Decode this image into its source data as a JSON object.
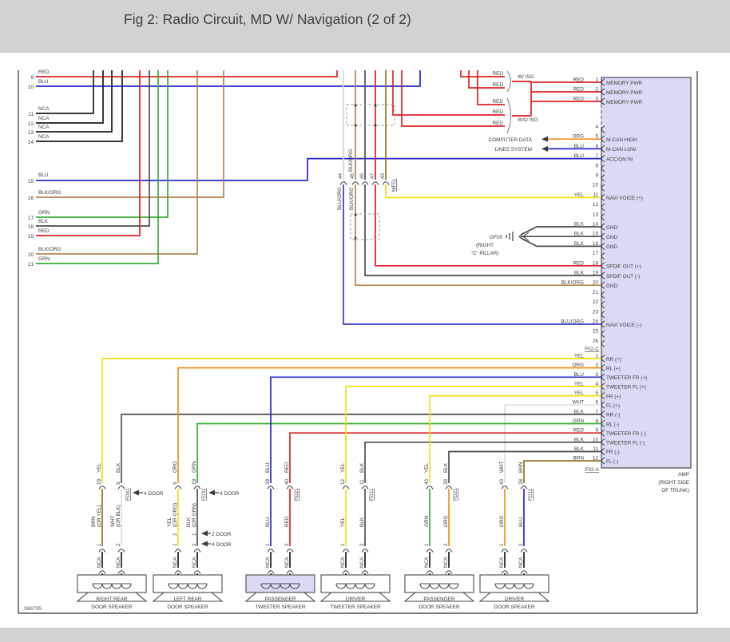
{
  "title": "Fig 2: Radio Circuit, MD W/ Navigation (2 of 2)",
  "sheet_number": "388705",
  "colors": {
    "red": "#de2126",
    "blue": "#2828cf",
    "yellow": "#f2df12",
    "orange": "#ef941e",
    "green": "#38ad38",
    "black_wire": "#4d4d4d",
    "nca_wire": "#1b1b1b",
    "blk_org": "#b3854e",
    "blu_org": "#3d38c9",
    "brown": "#8e7519",
    "white_wire": "#e0e0e0",
    "connector_fill": "#dadaf4",
    "header_band": "#d2d2d2"
  },
  "left_pins": [
    {
      "n": "9",
      "wire": "RED"
    },
    {
      "n": "10",
      "wire": "BLU"
    },
    {
      "n": "11",
      "wire": "NCA"
    },
    {
      "n": "12",
      "wire": "NCA"
    },
    {
      "n": "13",
      "wire": "NCA"
    },
    {
      "n": "14",
      "wire": "NCA"
    },
    {
      "n": "15",
      "wire": "BLU"
    },
    {
      "n": "16",
      "wire": "BLK/ORG"
    },
    {
      "n": "17",
      "wire": "GRN"
    },
    {
      "n": "18",
      "wire": "BLK"
    },
    {
      "n": "19",
      "wire": "RED"
    },
    {
      "n": "20",
      "wire": "BLK/ORG"
    },
    {
      "n": "21",
      "wire": "GRN"
    }
  ],
  "isg": {
    "wires": [
      "RED",
      "RED",
      "RED",
      "RED",
      "RED"
    ],
    "with_label": "W/ ISG",
    "without_label": "W/O ISG"
  },
  "computer_data": [
    "COMPUTER DATA",
    "LINES SYSTEM"
  ],
  "gf05": {
    "id": "GF05",
    "loc": [
      "(RIGHT",
      "\"C\" PILLAR)"
    ]
  },
  "mf51": {
    "id": "MF51",
    "pins": [
      "44",
      "45",
      "46",
      "47",
      "43"
    ],
    "label_above": "BLK/ORG",
    "labels_below": [
      "BLU/ORG",
      "BLK/ORG"
    ]
  },
  "amp": {
    "caption": [
      "AMP",
      "(RIGHT SIDE",
      "OF TRUNK)"
    ],
    "conn_c": "F02-C",
    "conn_a": "F02-A",
    "sec1_top": [
      {
        "n": "1",
        "wire": "RED",
        "label": "MEMORY PWR"
      },
      {
        "n": "2",
        "wire": "RED",
        "label": "MEMORY PWR"
      },
      {
        "n": "3",
        "wire": "RED",
        "label": "MEMORY PWR"
      }
    ],
    "sec1": [
      {
        "n": "4",
        "wire": "",
        "label": ""
      },
      {
        "n": "5",
        "wire": "ORG",
        "label": "M-CAN HIGH"
      },
      {
        "n": "6",
        "wire": "BLU",
        "label": "M-CAN LOW"
      },
      {
        "n": "7",
        "wire": "BLU",
        "label": "ACC/ON IN"
      },
      {
        "n": "8",
        "wire": "",
        "label": ""
      },
      {
        "n": "9",
        "wire": "",
        "label": ""
      },
      {
        "n": "10",
        "wire": "",
        "label": ""
      },
      {
        "n": "11",
        "wire": "YEL",
        "label": "NAVI VOICE (+)"
      },
      {
        "n": "12",
        "wire": "",
        "label": ""
      },
      {
        "n": "13",
        "wire": "",
        "label": ""
      },
      {
        "n": "14",
        "wire": "BLK",
        "label": "GND"
      },
      {
        "n": "15",
        "wire": "BLK",
        "label": "GND"
      },
      {
        "n": "16",
        "wire": "BLK",
        "label": "GND"
      },
      {
        "n": "17",
        "wire": "",
        "label": ""
      },
      {
        "n": "18",
        "wire": "RED",
        "label": "SPDIF OUT (+)"
      },
      {
        "n": "19",
        "wire": "BLK",
        "label": "SPDIF OUT (-)"
      },
      {
        "n": "20",
        "wire": "BLK/ORG",
        "label": "GND"
      },
      {
        "n": "21",
        "wire": "",
        "label": ""
      },
      {
        "n": "22",
        "wire": "",
        "label": ""
      },
      {
        "n": "23",
        "wire": "",
        "label": ""
      },
      {
        "n": "24",
        "wire": "BLU/ORG",
        "label": "NAVI VOICE (-)"
      },
      {
        "n": "25",
        "wire": "",
        "label": ""
      },
      {
        "n": "26",
        "wire": "",
        "label": ""
      }
    ],
    "sec2": [
      {
        "n": "1",
        "wire": "YEL",
        "label": "RR (+)"
      },
      {
        "n": "2",
        "wire": "ORG",
        "label": "RL (+)"
      },
      {
        "n": "3",
        "wire": "BLU",
        "label": "TWEETER FR (+)"
      },
      {
        "n": "4",
        "wire": "YEL",
        "label": "TWEETER FL (+)"
      },
      {
        "n": "5",
        "wire": "YEL",
        "label": "FR (+)"
      },
      {
        "n": "6",
        "wire": "WHT",
        "label": "FL (+)"
      },
      {
        "n": "7",
        "wire": "BLK",
        "label": "RR (-)"
      },
      {
        "n": "8",
        "wire": "GRN",
        "label": "RL (-)"
      },
      {
        "n": "9",
        "wire": "RED",
        "label": "TWEETER FR (-)"
      },
      {
        "n": "10",
        "wire": "BLK",
        "label": "TWEETER FL (-)"
      },
      {
        "n": "11",
        "wire": "BLK",
        "label": "FR (-)"
      },
      {
        "n": "12",
        "wire": "BRN",
        "label": "FL (-)"
      }
    ]
  },
  "speakers": [
    {
      "top_labels": [
        "YEL",
        "BLK"
      ],
      "top_pins": [
        "19",
        "9"
      ],
      "conn": "FD41",
      "conn_note": "4 DOOR",
      "mid_l": [
        "BRN",
        "(OR YEL)"
      ],
      "mid_r": [
        "WHT",
        "(OR BLK)"
      ],
      "bottom_pins": [
        "1",
        "2"
      ],
      "nca": [
        "NCA",
        "NCA"
      ],
      "name": [
        "RIGHT REAR",
        "DOOR SPEAKER"
      ]
    },
    {
      "top_labels": [
        "ORG",
        "GRN"
      ],
      "top_pins": [
        "9",
        "19"
      ],
      "conn": "FD31",
      "conn_note": "4 DOOR",
      "mid_l": [
        "YEL",
        "(OR ORG)"
      ],
      "mid_r": [
        "BLK",
        "(OR GRN)"
      ],
      "bottom_pins": [
        "",
        ""
      ],
      "variant_rows": [
        {
          "pins": [
            "2",
            "1"
          ],
          "note": "2 DOOR"
        },
        {
          "pins": [
            "1",
            "2"
          ],
          "note": "4 DOOR"
        }
      ],
      "nca": [
        "NCA",
        "NCA"
      ],
      "name": [
        "LEFT REAR",
        "DOOR SPEAKER"
      ]
    },
    {
      "top_labels": [
        "BLU",
        "RED"
      ],
      "top_pins": [
        "39",
        "40"
      ],
      "conn": "FD21",
      "conn_note": "",
      "mid_l": [
        "BLU",
        ""
      ],
      "mid_r": [
        "RED",
        ""
      ],
      "bottom_pins": [
        "1",
        "2"
      ],
      "nca": [
        "NCA",
        "NCA"
      ],
      "name": [
        "PASSENGER",
        "TWEETER SPEAKER"
      ]
    },
    {
      "top_labels": [
        "YEL",
        "BLK"
      ],
      "top_pins": [
        "12",
        "11"
      ],
      "conn": "FD11",
      "conn_note": "",
      "mid_l": [
        "YEL",
        ""
      ],
      "mid_r": [
        "BLK",
        ""
      ],
      "bottom_pins": [
        "1",
        "2"
      ],
      "nca": [
        "NCA",
        "NCA"
      ],
      "name": [
        "DRIVER",
        "TWEETER SPEAKER"
      ]
    },
    {
      "top_labels": [
        "YEL",
        "BLK"
      ],
      "top_pins": [
        "43",
        "28"
      ],
      "conn": "FD21",
      "conn_note": "",
      "mid_l": [
        "GRN",
        ""
      ],
      "mid_r": [
        "ORG",
        ""
      ],
      "bottom_pins": [
        "1",
        "2"
      ],
      "nca": [
        "NCA",
        "NCA"
      ],
      "name": [
        "PASSENGER",
        "DOOR SPEAKER"
      ]
    },
    {
      "top_labels": [
        "WHT",
        "BRN"
      ],
      "top_pins": [
        "43",
        "28"
      ],
      "conn": "FD11",
      "conn_note": "",
      "mid_l": [
        "ORG",
        ""
      ],
      "mid_r": [
        "BLU",
        ""
      ],
      "bottom_pins": [
        "1",
        "2"
      ],
      "nca": [
        "NCA",
        "NCA"
      ],
      "name": [
        "DRIVER",
        "DOOR SPEAKER"
      ]
    }
  ]
}
